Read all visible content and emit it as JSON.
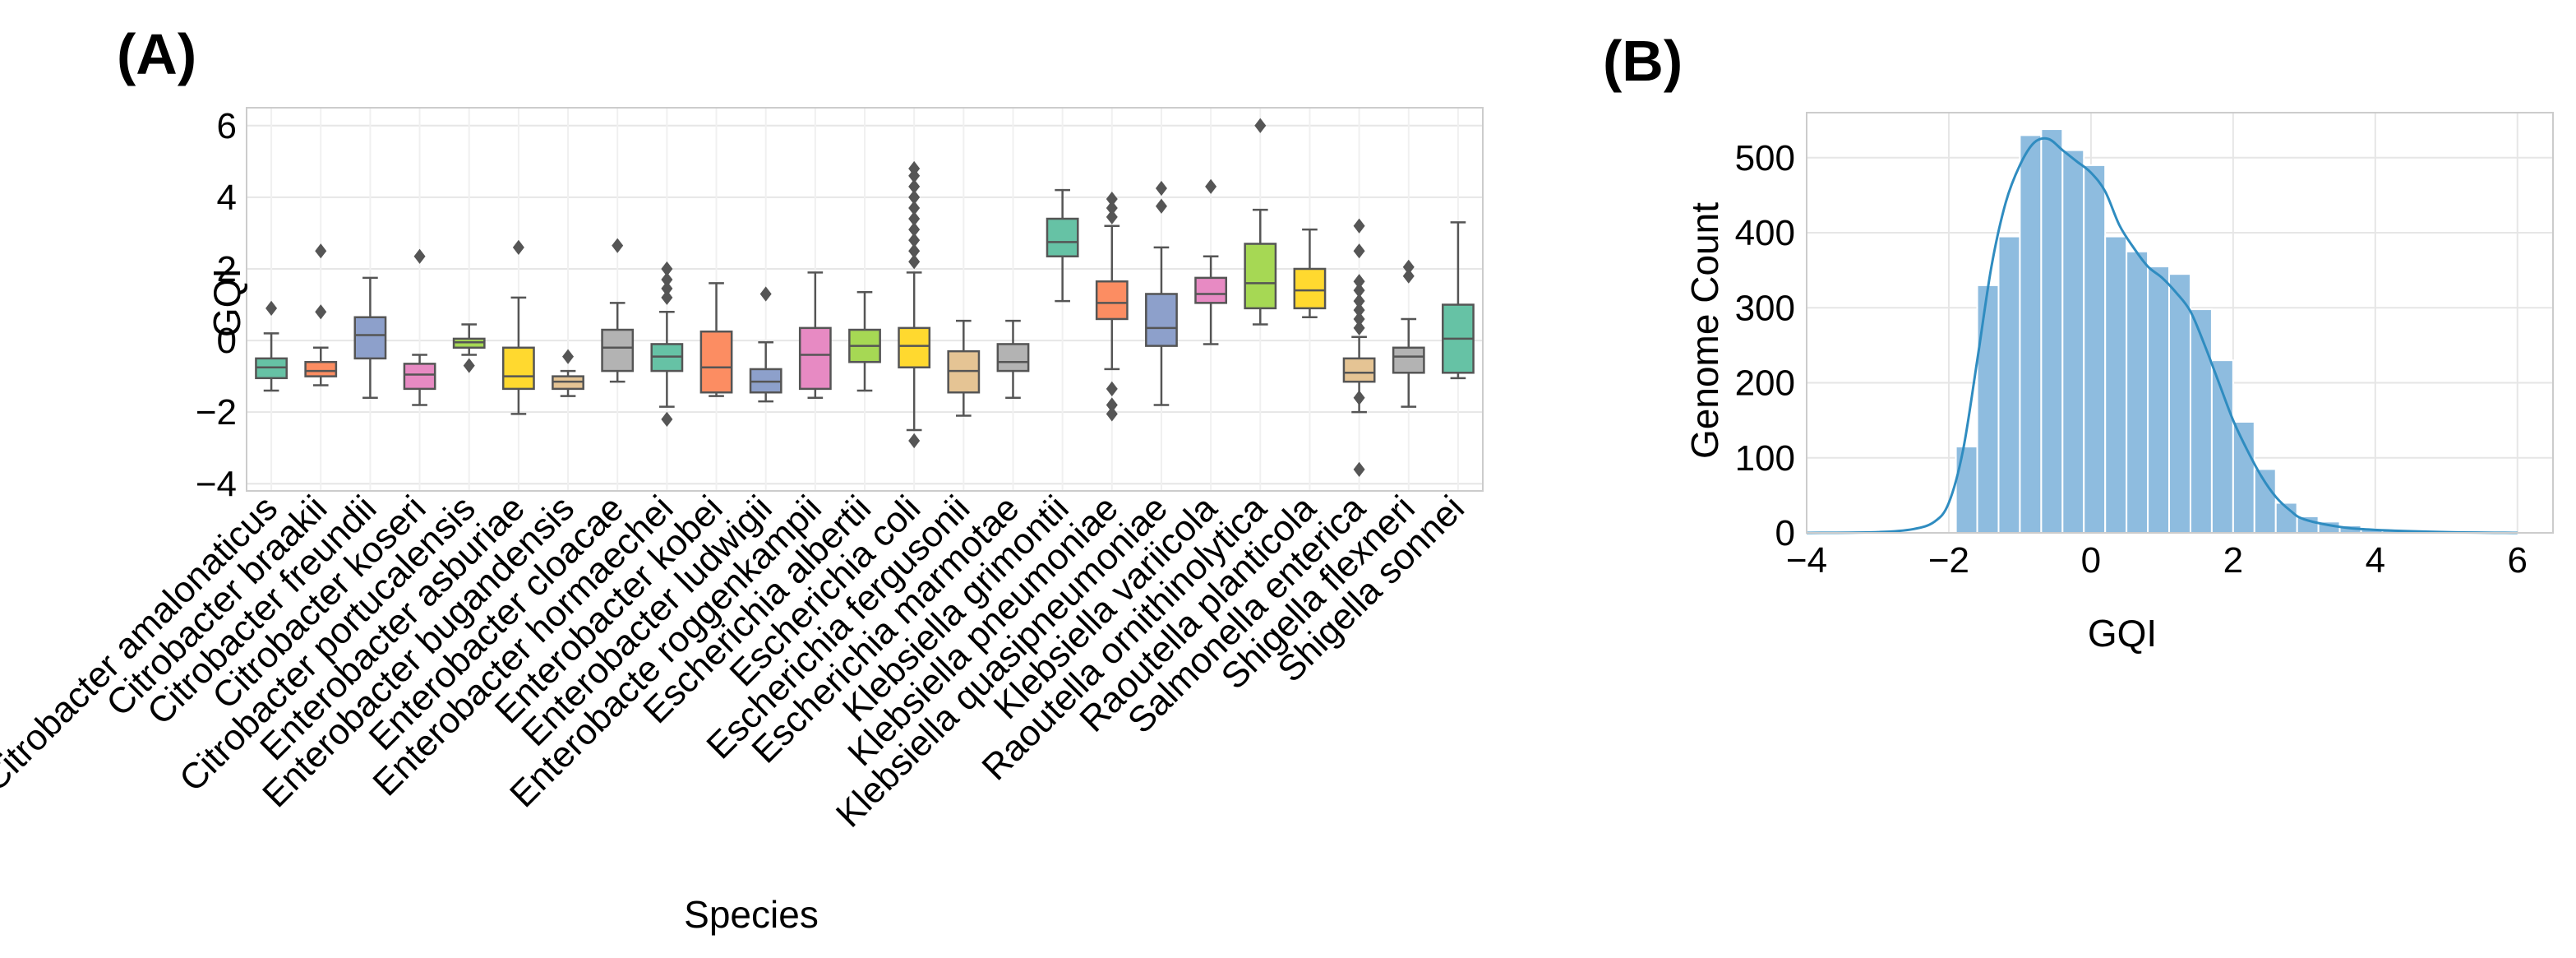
{
  "panels": {
    "a_label": "(A)",
    "b_label": "(B)"
  },
  "chart_data": [
    {
      "type": "box",
      "title": "",
      "xlabel": "Species",
      "ylabel": "GQI",
      "ylim": [
        -4.2,
        6.5
      ],
      "yticks": [
        -4,
        -2,
        0,
        2,
        4,
        6
      ],
      "ytick_labels": [
        "−4",
        "−2",
        "0",
        "2",
        "4",
        "6"
      ],
      "grid": true,
      "categories": [
        "Citrobacter amalonaticus",
        "Citrobacter braakii",
        "Citrobacter freundii",
        "Citrobacter koseri",
        "Citrobacter portucalensis",
        "Enterobacter asburiae",
        "Enterobacter bugandensis",
        "Enterobacter cloacae",
        "Enterobacter hormaechei",
        "Enterobacter kobei",
        "Enterobacter ludwigii",
        "Enterobacte roggenkampii",
        "Escherichia albertii",
        "Escherichia coli",
        "Escherichia fergusonii",
        "Escherichia marmotae",
        "Klebsiella grimontii",
        "Klebsiella pneumoniae",
        "Klebsiella quasipneumoniae",
        "Klebsiella variicola",
        "Raoutella ornithinolytica",
        "Raoutella planticola",
        "Salmonella enterica",
        "Shigella flexneri",
        "Shigella sonnei"
      ],
      "colors": [
        "#66c2a5",
        "#fc8d62",
        "#8da0cb",
        "#e78ac3",
        "#a6d854",
        "#ffd92f",
        "#e5c494",
        "#b3b3b3",
        "#66c2a5",
        "#fc8d62",
        "#8da0cb",
        "#e78ac3",
        "#a6d854",
        "#ffd92f",
        "#e5c494",
        "#b3b3b3",
        "#66c2a5",
        "#fc8d62",
        "#8da0cb",
        "#e78ac3",
        "#a6d854",
        "#ffd92f",
        "#e5c494",
        "#b3b3b3",
        "#66c2a5"
      ],
      "boxes": [
        {
          "whislo": -1.4,
          "q1": -1.05,
          "med": -0.75,
          "q3": -0.5,
          "whishi": 0.2,
          "fliers": [
            0.9
          ]
        },
        {
          "whislo": -1.25,
          "q1": -1.0,
          "med": -0.85,
          "q3": -0.6,
          "whishi": -0.2,
          "fliers": [
            0.8,
            2.5
          ]
        },
        {
          "whislo": -1.6,
          "q1": -0.5,
          "med": 0.15,
          "q3": 0.65,
          "whishi": 1.75,
          "fliers": []
        },
        {
          "whislo": -1.8,
          "q1": -1.35,
          "med": -0.95,
          "q3": -0.65,
          "whishi": -0.4,
          "fliers": [
            2.35
          ]
        },
        {
          "whislo": -0.4,
          "q1": -0.2,
          "med": -0.05,
          "q3": 0.05,
          "whishi": 0.45,
          "fliers": [
            -0.7
          ]
        },
        {
          "whislo": -2.05,
          "q1": -1.35,
          "med": -1.0,
          "q3": -0.2,
          "whishi": 1.2,
          "fliers": [
            2.6
          ]
        },
        {
          "whislo": -1.55,
          "q1": -1.35,
          "med": -1.15,
          "q3": -1.0,
          "whishi": -0.85,
          "fliers": [
            -0.45
          ]
        },
        {
          "whislo": -1.15,
          "q1": -0.85,
          "med": -0.2,
          "q3": 0.3,
          "whishi": 1.05,
          "fliers": [
            2.65
          ]
        },
        {
          "whislo": -1.85,
          "q1": -0.85,
          "med": -0.45,
          "q3": -0.1,
          "whishi": 0.8,
          "fliers": [
            -2.2,
            1.2,
            1.45,
            1.7,
            2.0
          ]
        },
        {
          "whislo": -1.55,
          "q1": -1.45,
          "med": -0.75,
          "q3": 0.25,
          "whishi": 1.6,
          "fliers": []
        },
        {
          "whislo": -1.7,
          "q1": -1.45,
          "med": -1.15,
          "q3": -0.8,
          "whishi": -0.05,
          "fliers": [
            1.3
          ]
        },
        {
          "whislo": -1.6,
          "q1": -1.35,
          "med": -0.4,
          "q3": 0.35,
          "whishi": 1.9,
          "fliers": []
        },
        {
          "whislo": -1.4,
          "q1": -0.6,
          "med": -0.15,
          "q3": 0.3,
          "whishi": 1.35,
          "fliers": []
        },
        {
          "whislo": -2.5,
          "q1": -0.75,
          "med": -0.15,
          "q3": 0.35,
          "whishi": 1.9,
          "fliers": [
            -2.8,
            2.2,
            2.5,
            2.8,
            3.1,
            3.4,
            3.7,
            4.0,
            4.3,
            4.6,
            4.8
          ]
        },
        {
          "whislo": -2.1,
          "q1": -1.45,
          "med": -0.85,
          "q3": -0.3,
          "whishi": 0.55,
          "fliers": []
        },
        {
          "whislo": -1.6,
          "q1": -0.85,
          "med": -0.6,
          "q3": -0.1,
          "whishi": 0.55,
          "fliers": []
        },
        {
          "whislo": 1.1,
          "q1": 2.35,
          "med": 2.75,
          "q3": 3.4,
          "whishi": 4.2,
          "fliers": []
        },
        {
          "whislo": -0.8,
          "q1": 0.6,
          "med": 1.05,
          "q3": 1.65,
          "whishi": 3.2,
          "fliers": [
            -2.05,
            -1.8,
            -1.35,
            3.45,
            3.7,
            3.95
          ]
        },
        {
          "whislo": -1.8,
          "q1": -0.15,
          "med": 0.35,
          "q3": 1.3,
          "whishi": 2.6,
          "fliers": [
            3.75,
            4.25
          ]
        },
        {
          "whislo": -0.1,
          "q1": 1.05,
          "med": 1.3,
          "q3": 1.75,
          "whishi": 2.35,
          "fliers": [
            4.3
          ]
        },
        {
          "whislo": 0.45,
          "q1": 0.9,
          "med": 1.6,
          "q3": 2.7,
          "whishi": 3.65,
          "fliers": [
            6.0
          ]
        },
        {
          "whislo": 0.65,
          "q1": 0.9,
          "med": 1.4,
          "q3": 2.0,
          "whishi": 3.1,
          "fliers": []
        },
        {
          "whislo": -2.0,
          "q1": -1.15,
          "med": -0.9,
          "q3": -0.5,
          "whishi": 0.1,
          "fliers": [
            -3.6,
            -1.6,
            0.35,
            0.6,
            0.85,
            1.1,
            1.4,
            1.65,
            2.5,
            3.2
          ]
        },
        {
          "whislo": -1.85,
          "q1": -0.9,
          "med": -0.45,
          "q3": -0.2,
          "whishi": 0.6,
          "fliers": [
            1.8,
            2.05
          ]
        },
        {
          "whislo": -1.05,
          "q1": -0.9,
          "med": 0.05,
          "q3": 1.0,
          "whishi": 3.3,
          "fliers": []
        }
      ]
    },
    {
      "type": "histogram",
      "title": "",
      "xlabel": "GQI",
      "ylabel": "Genome Count",
      "xlim": [
        -4,
        6.5
      ],
      "ylim": [
        0,
        560
      ],
      "xticks": [
        -4,
        -2,
        0,
        2,
        4,
        6
      ],
      "xtick_labels": [
        "−4",
        "−2",
        "0",
        "2",
        "4",
        "6"
      ],
      "yticks": [
        0,
        100,
        200,
        300,
        400,
        500
      ],
      "ytick_labels": [
        "0",
        "100",
        "200",
        "300",
        "400",
        "500"
      ],
      "grid": true,
      "bar_color": "#8ebcdf",
      "line_color": "#2f8cc0",
      "bin_width": 0.3,
      "bin_starts": [
        -1.9,
        -1.6,
        -1.3,
        -1.0,
        -0.7,
        -0.4,
        -0.1,
        0.2,
        0.5,
        0.8,
        1.1,
        1.4,
        1.7,
        2.0,
        2.3,
        2.6,
        2.9,
        3.2,
        3.5,
        3.8,
        4.1,
        4.4,
        4.7,
        5.0,
        5.3,
        5.6
      ],
      "counts": [
        115,
        330,
        395,
        530,
        538,
        510,
        490,
        395,
        375,
        355,
        345,
        298,
        230,
        148,
        85,
        40,
        22,
        15,
        10,
        5,
        4,
        3,
        2,
        1,
        1,
        1
      ],
      "kde_x": [
        -4,
        -3,
        -2.5,
        -2.2,
        -2.0,
        -1.8,
        -1.6,
        -1.4,
        -1.2,
        -1.0,
        -0.8,
        -0.6,
        -0.4,
        -0.2,
        0.0,
        0.2,
        0.4,
        0.6,
        0.8,
        1.0,
        1.2,
        1.4,
        1.6,
        1.8,
        2.0,
        2.2,
        2.4,
        2.6,
        2.8,
        3.0,
        3.5,
        4.0,
        5.0,
        6.0
      ],
      "kde_y": [
        0,
        1,
        5,
        15,
        40,
        110,
        230,
        355,
        440,
        490,
        520,
        525,
        510,
        495,
        480,
        455,
        410,
        380,
        355,
        340,
        320,
        295,
        250,
        200,
        150,
        110,
        75,
        48,
        30,
        18,
        8,
        4,
        1,
        0
      ]
    }
  ]
}
